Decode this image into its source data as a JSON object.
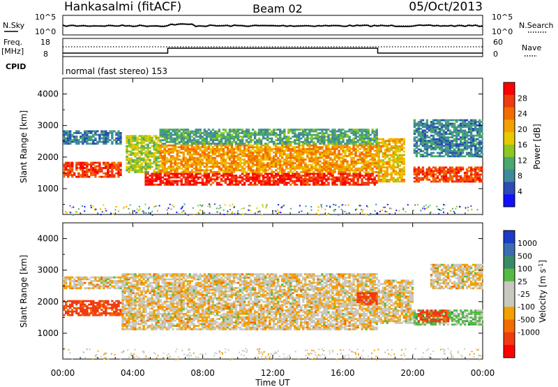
{
  "header": {
    "station": "Hankasalmi (fitACF)",
    "beam": "Beam 02",
    "date": "05/Oct/2013"
  },
  "noise_panel": {
    "left_label": "N.Sky",
    "right_label": "N.Search",
    "left_ticks": [
      "10^5",
      "10^0"
    ],
    "right_ticks": [
      "10^5",
      "10^0"
    ]
  },
  "freq_panel": {
    "left_label_1": "Freq.",
    "left_label_2": "[MHz]",
    "left_ticks": [
      "18",
      "8"
    ],
    "right_label": "Nave",
    "right_ticks": [
      "60",
      "0"
    ],
    "cpid_label": "CPID",
    "cpid_text": "normal (fast stereo) 153"
  },
  "chart_data": [
    {
      "type": "heatmap",
      "name": "power",
      "xlabel": "",
      "ylabel": "Slant Range [km]",
      "x_ticks": [
        "00:00",
        "04:00",
        "08:00",
        "12:00",
        "16:00",
        "20:00",
        "00:00"
      ],
      "xlim_hours": [
        0,
        24
      ],
      "ylim": [
        180,
        4500
      ],
      "y_ticks": [
        1000,
        2000,
        3000,
        4000
      ],
      "colorbar": {
        "label": "Power [dB]",
        "ticks": [
          "4",
          "8",
          "12",
          "16",
          "20",
          "24",
          "28"
        ],
        "range": [
          0,
          30
        ],
        "colors": [
          "#1010ff",
          "#2a4cb4",
          "#3e8a9a",
          "#4aa86e",
          "#8cc820",
          "#e8c800",
          "#f4a000",
          "#f46c00",
          "#f03a10",
          "#ff0000"
        ]
      },
      "bands": [
        {
          "start": 0.0,
          "end": 3.3,
          "low": 1350,
          "high": 1850,
          "level": 25
        },
        {
          "start": 0.0,
          "end": 3.3,
          "low": 2400,
          "high": 2850,
          "level": 7
        },
        {
          "start": 3.5,
          "end": 5.5,
          "low": 1500,
          "high": 2700,
          "level": 14
        },
        {
          "start": 4.6,
          "end": 18.0,
          "low": 1100,
          "high": 1500,
          "level": 27
        },
        {
          "start": 5.5,
          "end": 18.0,
          "low": 1500,
          "high": 2400,
          "level": 20
        },
        {
          "start": 5.5,
          "end": 18.0,
          "low": 2400,
          "high": 2900,
          "level": 10
        },
        {
          "start": 18.0,
          "end": 19.5,
          "low": 1200,
          "high": 2600,
          "level": 18
        },
        {
          "start": 20.0,
          "end": 24.0,
          "low": 1200,
          "high": 1700,
          "level": 25
        },
        {
          "start": 20.0,
          "end": 24.0,
          "low": 2000,
          "high": 3200,
          "level": 8
        }
      ]
    },
    {
      "type": "heatmap",
      "name": "velocity",
      "xlabel": "Time UT",
      "ylabel": "Slant Range [km]",
      "x_ticks": [
        "00:00",
        "04:00",
        "08:00",
        "12:00",
        "16:00",
        "20:00",
        "00:00"
      ],
      "xlim_hours": [
        0,
        24
      ],
      "ylim": [
        180,
        4500
      ],
      "y_ticks": [
        1000,
        2000,
        3000,
        4000
      ],
      "colorbar": {
        "label": "Velocity [m s^-1]",
        "ticks": [
          "1000",
          "500",
          "100",
          "25",
          "-25",
          "-100",
          "-500",
          "-1000"
        ],
        "colors": [
          "#1a3cc8",
          "#3a6cb0",
          "#3a8a66",
          "#55bb44",
          "#c8c8c0",
          "#c8c8c0",
          "#f4a000",
          "#f46c00",
          "#f03a10",
          "#ff0000"
        ]
      },
      "bands": [
        {
          "start": 0.0,
          "end": 3.3,
          "low": 1550,
          "high": 2050,
          "level": -300
        },
        {
          "start": 0.0,
          "end": 3.5,
          "low": 2400,
          "high": 2800,
          "level": 0
        },
        {
          "start": 3.3,
          "end": 18.0,
          "low": 1100,
          "high": 2900,
          "level": 0
        },
        {
          "start": 16.7,
          "end": 18.0,
          "low": 1900,
          "high": 2300,
          "level": -300
        },
        {
          "start": 18.0,
          "end": 20.0,
          "low": 1300,
          "high": 2700,
          "level": 0
        },
        {
          "start": 20.0,
          "end": 24.0,
          "low": 1250,
          "high": 1750,
          "level": 150
        },
        {
          "start": 20.2,
          "end": 22.0,
          "low": 1350,
          "high": 1750,
          "level": -300
        },
        {
          "start": 21.0,
          "end": 24.0,
          "low": 2400,
          "high": 3200,
          "level": 0
        }
      ]
    }
  ]
}
